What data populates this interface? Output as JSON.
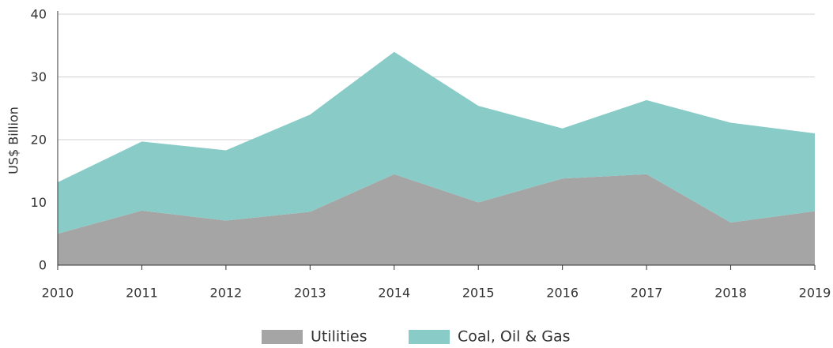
{
  "chart_data": {
    "type": "stacked_area",
    "y_label": "US$ Billion",
    "categories": [
      "2010",
      "2011",
      "2012",
      "2013",
      "2014",
      "2015",
      "2016",
      "2017",
      "2018",
      "2019"
    ],
    "series": [
      {
        "name": "Utilities",
        "color": "#a5a5a5",
        "values": [
          5,
          8.7,
          7.1,
          8.5,
          14.5,
          10,
          13.8,
          14.5,
          6.8,
          8.6
        ]
      },
      {
        "name": "Coal, Oil & Gas",
        "color": "#88cbc7",
        "values": [
          8.2,
          11,
          11.2,
          15.5,
          19.5,
          15.4,
          8,
          11.8,
          15.9,
          12.4
        ]
      }
    ],
    "ylim": [
      0,
      40
    ],
    "yticks": [
      0,
      10,
      20,
      30,
      40
    ],
    "grid": true
  }
}
